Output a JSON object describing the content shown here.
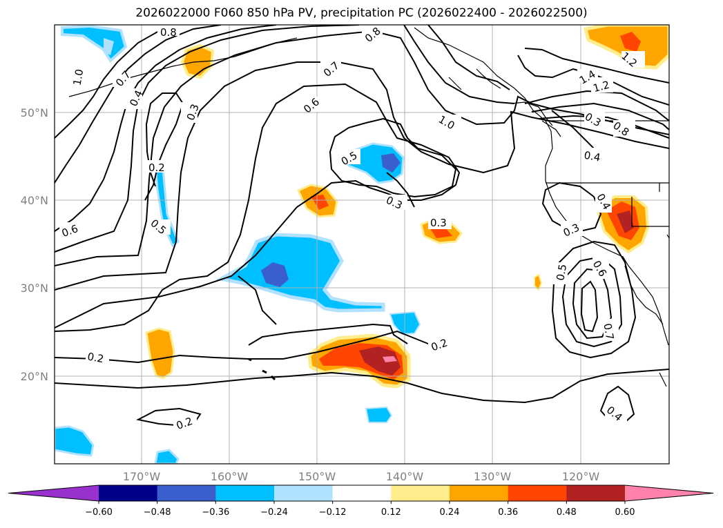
{
  "title": "2026022000 F060 850 hPa PV, precipitation PC (2026022400 - 2026022500)",
  "map": {
    "lat_labels": [
      "50°N",
      "40°N",
      "30°N",
      "20°N"
    ],
    "lon_labels": [
      "170°W",
      "160°W",
      "150°W",
      "140°W",
      "130°W",
      "120°W"
    ],
    "extent": {
      "lon_min": -180,
      "lon_max": -110,
      "lat_min": 10,
      "lat_max": 60
    }
  },
  "colorbar": {
    "ticks": [
      "−0.60",
      "−0.48",
      "−0.36",
      "−0.24",
      "−0.12",
      "0.12",
      "0.24",
      "0.36",
      "0.48",
      "0.60"
    ],
    "colors": [
      "#9932cc",
      "#00008b",
      "#3a5fcd",
      "#00bfff",
      "#b0e2ff",
      "#ffffff",
      "#ffec8b",
      "#ffa500",
      "#ff4500",
      "#b22222",
      "#ff82ab"
    ]
  },
  "contour_labels": [
    "0.8",
    "1.0",
    "0.7",
    "0.4",
    "0.3",
    "0.2",
    "0.5",
    "0.6",
    "0.8",
    "0.7",
    "0.6",
    "1.0",
    "0.5",
    "0.3",
    "0.3",
    "1.2",
    "1.2",
    "1.4",
    "0.3",
    "0.8",
    "0.4",
    "0.4",
    "0.3",
    "0.5",
    "0.6",
    "0.7",
    "0.2",
    "0.2",
    "0.2",
    "0.4"
  ]
}
